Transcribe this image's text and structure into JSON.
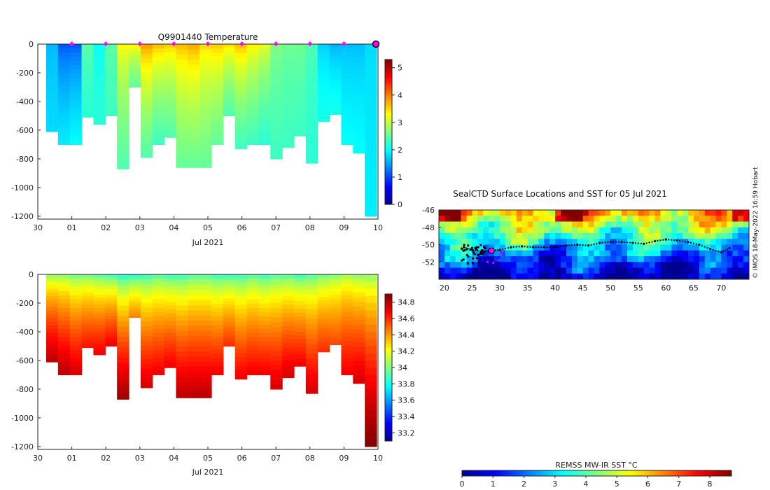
{
  "colors": {
    "jet": [
      "#00008f",
      "#0000ff",
      "#0080ff",
      "#00ffff",
      "#80ff80",
      "#ffff00",
      "#ff8000",
      "#ff0000",
      "#800000"
    ],
    "marker": "#ff00ff",
    "track": "#000000"
  },
  "credit": "© IMOS 18-May-2022 16:59 Hobart",
  "chart_data": [
    {
      "type": "heatmap",
      "title": "Q9901440  Temperature",
      "xlabel": "Jul 2021",
      "x_tick_labels": [
        "30",
        "01",
        "02",
        "03",
        "04",
        "05",
        "06",
        "07",
        "08",
        "09",
        "10"
      ],
      "x_tick_values": [
        0,
        1,
        2,
        3,
        4,
        5,
        6,
        7,
        8,
        9,
        10
      ],
      "ylim": [
        -1220,
        0
      ],
      "y_tick_values": [
        0,
        -200,
        -400,
        -600,
        -800,
        -1000,
        -1200
      ],
      "y_tick_labels": [
        "0",
        "-200",
        "-400",
        "-600",
        "-800",
        "-1000",
        "-1200"
      ],
      "colorbar": {
        "min": 0,
        "max": 5.3,
        "ticks": [
          0,
          1,
          2,
          3,
          4,
          5
        ],
        "tick_labels": [
          "0",
          "1",
          "2",
          "3",
          "4",
          "5"
        ]
      },
      "profile_markers_days": [
        1,
        2,
        3,
        4,
        5,
        6,
        7,
        8,
        9,
        10
      ],
      "profile_max_depth": [
        610,
        700,
        700,
        510,
        560,
        500,
        870,
        300,
        790,
        700,
        650,
        860,
        860,
        860,
        700,
        500,
        730,
        700,
        700,
        800,
        720,
        640,
        830,
        540,
        490,
        700,
        760,
        1200
      ],
      "surface_value": [
        1.6,
        1.0,
        1.0,
        2.5,
        2.0,
        2.5,
        3.4,
        3.5,
        4.0,
        3.8,
        3.7,
        3.8,
        3.9,
        3.6,
        3.7,
        3.6,
        3.8,
        3.5,
        3.3,
        2.7,
        2.6,
        2.6,
        2.4,
        1.7,
        1.5,
        1.6,
        1.6,
        1.8
      ],
      "deep_value": [
        1.8,
        1.9,
        2.0,
        2.2,
        2.2,
        2.3,
        2.4,
        2.5,
        2.4,
        2.3,
        2.4,
        2.5,
        2.5,
        2.5,
        2.5,
        2.4,
        2.3,
        2.3,
        2.2,
        2.3,
        2.3,
        2.3,
        2.2,
        2.1,
        2.1,
        2.0,
        2.0,
        1.9
      ]
    },
    {
      "type": "heatmap",
      "title": "",
      "xlabel": "Jul 2021",
      "x_tick_labels": [
        "30",
        "01",
        "02",
        "03",
        "04",
        "05",
        "06",
        "07",
        "08",
        "09",
        "10"
      ],
      "x_tick_values": [
        0,
        1,
        2,
        3,
        4,
        5,
        6,
        7,
        8,
        9,
        10
      ],
      "ylim": [
        -1220,
        0
      ],
      "y_tick_values": [
        0,
        -200,
        -400,
        -600,
        -800,
        -1000,
        -1200
      ],
      "y_tick_labels": [
        "0",
        "-200",
        "-400",
        "-600",
        "-800",
        "-1000",
        "-1200"
      ],
      "colorbar": {
        "min": 33.1,
        "max": 34.9,
        "ticks": [
          33.2,
          33.4,
          33.6,
          33.8,
          34.0,
          34.2,
          34.4,
          34.6,
          34.8
        ],
        "tick_labels": [
          "33.2",
          "33.4",
          "33.6",
          "33.8",
          "34",
          "34.2",
          "34.4",
          "34.6",
          "34.8"
        ]
      },
      "surface_value": [
        33.95,
        33.95,
        33.9,
        33.9,
        33.85,
        33.8,
        33.75,
        33.75,
        33.8,
        33.85,
        33.8,
        33.8,
        33.85,
        33.85,
        33.8,
        33.8,
        33.8,
        33.85,
        33.8,
        33.85,
        33.85,
        33.8,
        33.85,
        33.9,
        33.95,
        34.0,
        33.95,
        33.95
      ],
      "deep_value": [
        34.8,
        34.8,
        34.75,
        34.65,
        34.7,
        34.7,
        34.85,
        34.45,
        34.75,
        34.7,
        34.7,
        34.8,
        34.8,
        34.8,
        34.7,
        34.6,
        34.7,
        34.7,
        34.7,
        34.75,
        34.75,
        34.7,
        34.75,
        34.6,
        34.55,
        34.7,
        34.75,
        34.9
      ]
    },
    {
      "type": "heatmap",
      "title": "SealCTD Surface Locations and SST for 05 Jul 2021",
      "x_tick_labels": [
        "20",
        "25",
        "30",
        "35",
        "40",
        "45",
        "50",
        "55",
        "60",
        "65",
        "70"
      ],
      "x_tick_values": [
        20,
        25,
        30,
        35,
        40,
        45,
        50,
        55,
        60,
        65,
        70
      ],
      "xlim": [
        19,
        75
      ],
      "ylim": [
        -54,
        -46
      ],
      "y_tick_values": [
        -46,
        -48,
        -50,
        -52
      ],
      "y_tick_labels": [
        "-46",
        "-48",
        "-50",
        "-52"
      ],
      "colorbar": {
        "label": "REMSS MW-IR SST °C",
        "min": 0,
        "max": 8.7,
        "ticks": [
          0,
          1,
          2,
          3,
          4,
          5,
          6,
          7,
          8
        ],
        "tick_labels": [
          "0",
          "1",
          "2",
          "3",
          "4",
          "5",
          "6",
          "7",
          "8"
        ]
      },
      "track_lonlat": [
        [
          23.5,
          -50.3
        ],
        [
          25,
          -50.6
        ],
        [
          27,
          -50.8
        ],
        [
          28.5,
          -50.7
        ],
        [
          30,
          -50.6
        ],
        [
          32,
          -50.3
        ],
        [
          34,
          -50.2
        ],
        [
          36,
          -50.3
        ],
        [
          38,
          -50.3
        ],
        [
          40,
          -50.3
        ],
        [
          42,
          -50.1
        ],
        [
          44,
          -50.0
        ],
        [
          46,
          -50.1
        ],
        [
          48,
          -49.8
        ],
        [
          50,
          -49.7
        ],
        [
          52,
          -49.7
        ],
        [
          54,
          -49.8
        ],
        [
          56,
          -49.9
        ],
        [
          58,
          -49.6
        ],
        [
          60,
          -49.4
        ],
        [
          62,
          -49.5
        ],
        [
          64,
          -49.7
        ],
        [
          66,
          -50.0
        ],
        [
          68,
          -50.5
        ],
        [
          70,
          -50.9
        ],
        [
          71.5,
          -50.4
        ]
      ],
      "current_position_lonlat": [
        28.5,
        -50.7
      ],
      "recent_positions_lonlat": [
        [
          27.8,
          -52.0
        ],
        [
          28.8,
          -52.1
        ],
        [
          29.8,
          -51.8
        ],
        [
          30.2,
          -51.2
        ],
        [
          30.5,
          -50.7
        ]
      ]
    }
  ]
}
